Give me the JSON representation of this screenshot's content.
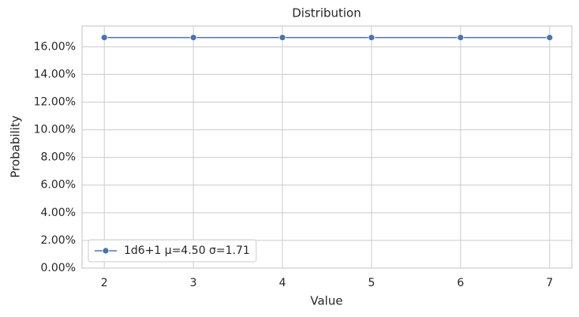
{
  "chart_data": {
    "type": "line",
    "title": "Distribution",
    "x_label": "Value",
    "y_label": "Probability",
    "x": [
      2,
      3,
      4,
      5,
      6,
      7
    ],
    "series": [
      {
        "name": "1d6+1 μ=4.50 σ=1.71",
        "color": "#4c72b0",
        "values": [
          16.6667,
          16.6667,
          16.6667,
          16.6667,
          16.6667,
          16.6667
        ]
      }
    ],
    "xlim": [
      1.75,
      7.25
    ],
    "xticks": [
      2,
      3,
      4,
      5,
      6,
      7
    ],
    "ylim": [
      0,
      17.5
    ],
    "yticks": [
      {
        "value": 0,
        "label": "0.00%"
      },
      {
        "value": 2,
        "label": "2.00%"
      },
      {
        "value": 4,
        "label": "4.00%"
      },
      {
        "value": 6,
        "label": "6.00%"
      },
      {
        "value": 8,
        "label": "8.00%"
      },
      {
        "value": 10,
        "label": "10.00%"
      },
      {
        "value": 12,
        "label": "12.00%"
      },
      {
        "value": 14,
        "label": "14.00%"
      },
      {
        "value": 16,
        "label": "16.00%"
      }
    ],
    "grid": true,
    "legend": "lower left"
  }
}
